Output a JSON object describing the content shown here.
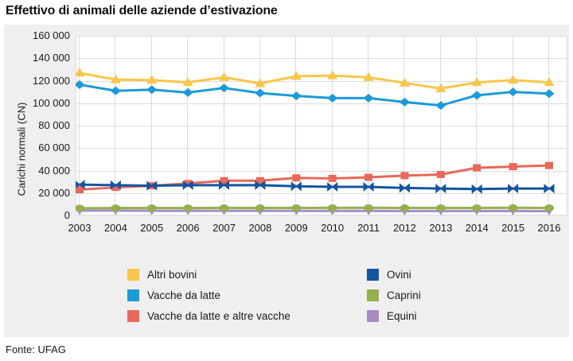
{
  "header": {
    "title": "Effettivo di animali delle aziende d’estivazione"
  },
  "footer": {
    "source": "Fonte: UFAG"
  },
  "colors": {
    "panel_background": "#efefef",
    "plot_background": "#ffffff",
    "gridline": "#dcdcdc",
    "text": "#1a1a1a"
  },
  "chart_data": {
    "type": "line",
    "title": "Effettivo di animali delle aziende d’estivazione",
    "xlabel": "",
    "ylabel": "Carichi normali (CN)",
    "ylim": [
      0,
      160000
    ],
    "ytick_step": 20000,
    "grid": true,
    "legend_position": "bottom",
    "categories": [
      2003,
      2004,
      2005,
      2006,
      2007,
      2008,
      2009,
      2010,
      2011,
      2012,
      2013,
      2014,
      2015,
      2016
    ],
    "series": [
      {
        "name": "Altri bovini",
        "color": "#F8C64B",
        "marker": "triangle-up",
        "values": [
          127000,
          121000,
          120500,
          118500,
          123000,
          117500,
          124000,
          124500,
          123000,
          118000,
          113000,
          118500,
          120500,
          118500
        ]
      },
      {
        "name": "Vacche da latte",
        "color": "#1C9AD9",
        "marker": "diamond",
        "values": [
          116500,
          111000,
          112000,
          109500,
          113500,
          109000,
          106500,
          104500,
          104500,
          101000,
          98000,
          107000,
          110000,
          108500
        ]
      },
      {
        "name": "Vacche da latte e altre vacche",
        "color": "#E8685A",
        "marker": "square",
        "values": [
          23000,
          25000,
          26500,
          28500,
          31000,
          31000,
          33500,
          33000,
          34000,
          35500,
          36500,
          42500,
          43500,
          44500
        ]
      },
      {
        "name": "Ovini",
        "color": "#1355A0",
        "marker": "bowtie",
        "values": [
          27500,
          27000,
          26500,
          27000,
          27000,
          27000,
          26000,
          25500,
          25500,
          24500,
          24000,
          23500,
          24000,
          24000
        ]
      },
      {
        "name": "Caprini",
        "color": "#94B04F",
        "marker": "ellipse",
        "values": [
          6500,
          6600,
          6600,
          6600,
          6700,
          6700,
          6700,
          6800,
          6800,
          6700,
          6700,
          6700,
          6800,
          6700
        ]
      },
      {
        "name": "Equini",
        "color": "#A78CC3",
        "marker": "triangle-down",
        "values": [
          4300,
          4300,
          4200,
          4200,
          4200,
          4200,
          4100,
          4100,
          4100,
          4000,
          4000,
          4000,
          4000,
          3900
        ]
      }
    ]
  }
}
